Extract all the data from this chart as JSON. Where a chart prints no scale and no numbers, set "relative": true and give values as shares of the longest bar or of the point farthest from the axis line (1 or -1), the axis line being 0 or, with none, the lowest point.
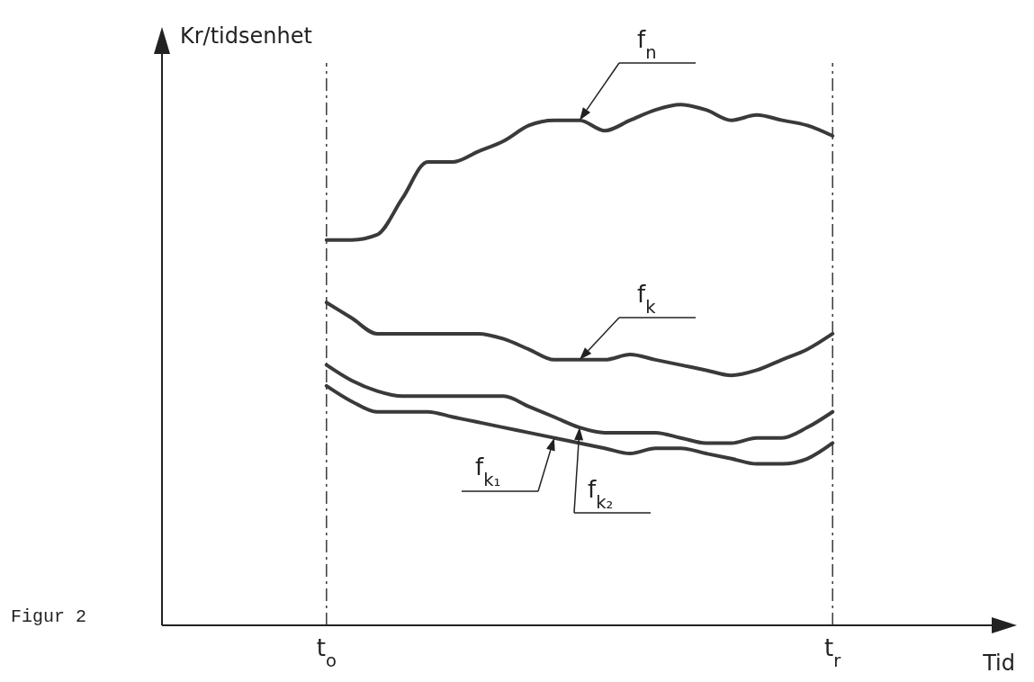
{
  "chart_data": {
    "type": "line",
    "relative": true,
    "ylabel": "Kr/tidsenhet",
    "xlabel": "Tid",
    "annotations": [
      "Figur 2"
    ],
    "categories": [
      null,
      null,
      null,
      null,
      null,
      null,
      "t$_{o}$",
      null,
      null,
      null,
      null,
      null,
      null,
      null,
      null,
      null,
      null,
      null,
      null,
      null,
      null,
      null,
      null,
      null,
      null,
      null,
      "t$_{r}$",
      null,
      null,
      null,
      null,
      null,
      null
    ],
    "series": [
      {
        "name": "f$_{n}$",
        "color": "#3a3a3a",
        "values": [
          null,
          null,
          null,
          null,
          null,
          null,
          0.74,
          0.74,
          0.75,
          0.82,
          0.89,
          0.89,
          0.91,
          0.93,
          0.96,
          0.97,
          0.97,
          0.95,
          0.97,
          0.99,
          1,
          0.99,
          0.97,
          0.98,
          0.97,
          0.96,
          0.94,
          null,
          null,
          null,
          null,
          null,
          null
        ]
      },
      {
        "name": "f$_{k}$",
        "color": "#3a3a3a",
        "values": [
          null,
          null,
          null,
          null,
          null,
          null,
          0.62,
          0.59,
          0.56,
          0.56,
          0.56,
          0.56,
          0.56,
          0.55,
          0.53,
          0.51,
          0.51,
          0.51,
          0.52,
          0.51,
          0.5,
          0.49,
          0.48,
          0.49,
          0.51,
          0.53,
          0.56,
          null,
          null,
          null,
          null,
          null,
          null
        ]
      },
      {
        "name": "f$_{k₂}$",
        "color": "#3a3a3a",
        "values": [
          null,
          null,
          null,
          null,
          null,
          null,
          0.5,
          0.47,
          0.45,
          0.44,
          0.44,
          0.44,
          0.44,
          0.44,
          0.42,
          0.4,
          0.38,
          0.37,
          0.37,
          0.37,
          0.36,
          0.35,
          0.35,
          0.36,
          0.36,
          0.38,
          0.41,
          null,
          null,
          null,
          null,
          null,
          null
        ]
      },
      {
        "name": "f$_{k₁}$",
        "color": "#3a3a3a",
        "values": [
          null,
          null,
          null,
          null,
          null,
          null,
          0.46,
          0.43,
          0.41,
          0.41,
          0.41,
          0.4,
          0.39,
          0.38,
          0.37,
          0.36,
          0.35,
          0.34,
          0.33,
          0.34,
          0.34,
          0.33,
          0.32,
          0.31,
          0.31,
          0.32,
          0.35,
          null,
          null,
          null,
          null,
          null,
          null
        ]
      }
    ],
    "ref_lines": [
      {
        "axis": "x",
        "value": "t$_{o}$",
        "line_style": "dashed",
        "color": "#3a3a3a"
      },
      {
        "axis": "x",
        "value": "t$_{r}$",
        "line_style": "dashed",
        "color": "#3a3a3a"
      }
    ],
    "grid": false,
    "line_style": "solid"
  }
}
